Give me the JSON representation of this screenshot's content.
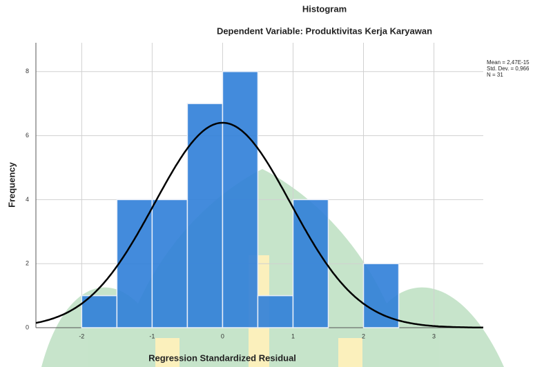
{
  "chart_data": {
    "type": "histogram",
    "title": "Histogram",
    "subtitle": "Dependent Variable: Produktivitas Kerja Karyawan",
    "x_label": "Regression Standardized Residual",
    "y_label": "Frequency",
    "bins": [
      -2,
      -1.5,
      -1,
      -0.5,
      0,
      0.5,
      1,
      1.5,
      2,
      2.5
    ],
    "values": [
      1,
      4,
      4,
      7,
      8,
      1,
      4,
      0,
      2
    ],
    "color": "#2f7ed8",
    "xlim": [
      -2.65,
      3.7
    ],
    "xticks": [
      -2,
      -1,
      0,
      1,
      2,
      3
    ],
    "ylim": [
      0,
      8.9
    ],
    "yticks": [
      0,
      2,
      4,
      6,
      8
    ],
    "grid": true,
    "stats_text": [
      "Mean = 2,47E-15",
      "Std. Dev. = 0,966",
      "N = 31"
    ],
    "normal_curve": {
      "mean": 2.47e-15,
      "sd": 0.966,
      "n": 31,
      "color": "#000000"
    }
  }
}
